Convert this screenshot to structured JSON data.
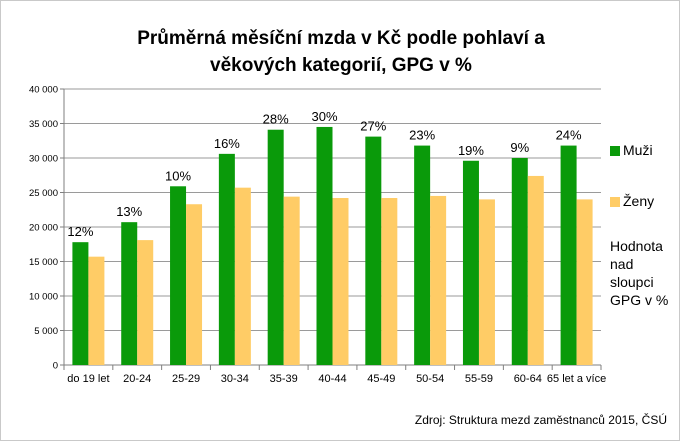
{
  "chart_data": {
    "type": "bar",
    "title_lines": [
      "Průměrná měsíční mzda v Kč podle pohlaví a",
      "věkových kategorií, GPG v %"
    ],
    "categories": [
      "do 19 let",
      "20-24",
      "25-29",
      "30-34",
      "35-39",
      "40-44",
      "45-49",
      "50-54",
      "55-59",
      "60-64",
      "65 let a více"
    ],
    "series": [
      {
        "name": "Muži",
        "color": "#0a9a0a",
        "values": [
          17800,
          20700,
          25900,
          30600,
          34100,
          34500,
          33100,
          31800,
          29600,
          30000,
          31800
        ]
      },
      {
        "name": "Ženy",
        "color": "#ffcc66",
        "values": [
          15700,
          18100,
          23300,
          25700,
          24400,
          24200,
          24200,
          24500,
          24000,
          27400,
          24000
        ]
      }
    ],
    "gap_labels": [
      "12%",
      "13%",
      "10%",
      "16%",
      "28%",
      "30%",
      "27%",
      "23%",
      "19%",
      "9%",
      "24%"
    ],
    "ylim": [
      0,
      40000
    ],
    "yticks": [
      0,
      5000,
      10000,
      15000,
      20000,
      25000,
      30000,
      35000,
      40000
    ],
    "ytick_labels": [
      "0",
      "5 000",
      "10 000",
      "15 000",
      "20 000",
      "25 000",
      "30 000",
      "35 000",
      "40 000"
    ],
    "gridlines": true,
    "legend_position": "right",
    "note": "Hodnota nad sloupci GPG v %",
    "source": "Zdroj: Struktura mezd zaměstnanců 2015, ČSÚ"
  }
}
